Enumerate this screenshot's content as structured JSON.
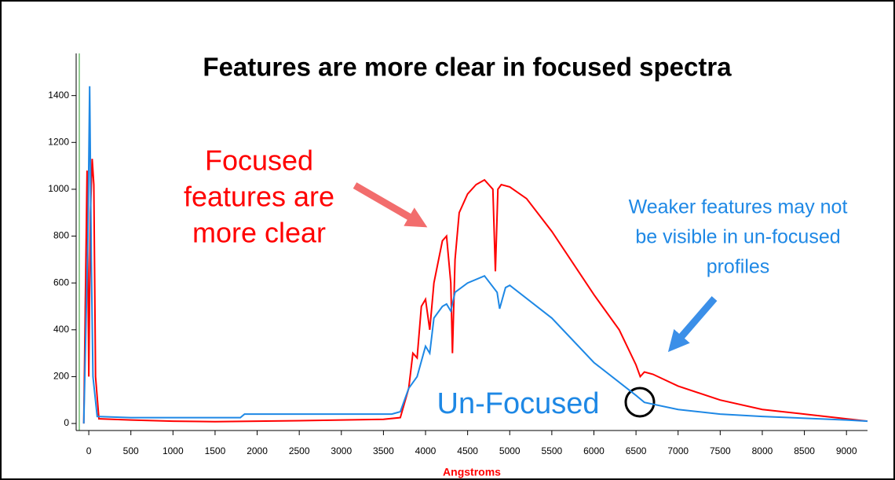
{
  "chart_data": {
    "type": "line",
    "title": "Features are more clear in focused spectra",
    "x_label": "Angstroms",
    "x_label_color": "#ff0000",
    "xlim": [
      -150,
      9250
    ],
    "ylim": [
      -30,
      1580
    ],
    "xticks": [
      0,
      500,
      1000,
      1500,
      2000,
      2500,
      3000,
      3500,
      4000,
      4500,
      5000,
      5500,
      6000,
      6500,
      7000,
      7500,
      8000,
      8500,
      9000
    ],
    "yticks": [
      0,
      200,
      400,
      600,
      800,
      1000,
      1200,
      1400
    ],
    "series": [
      {
        "color": "#ff0000",
        "x": [
          -60,
          -20,
          0,
          20,
          40,
          60,
          80,
          120,
          500,
          1000,
          1500,
          2000,
          2500,
          3000,
          3500,
          3700,
          3800,
          3850,
          3900,
          3950,
          4000,
          4050,
          4100,
          4200,
          4250,
          4300,
          4320,
          4350,
          4400,
          4500,
          4600,
          4700,
          4800,
          4830,
          4860,
          4900,
          5000,
          5200,
          5500,
          6000,
          6300,
          6500,
          6550,
          6600,
          6700,
          7000,
          7500,
          8000,
          8500,
          9000,
          9250
        ],
        "values": [
          0,
          1080,
          200,
          900,
          1130,
          1020,
          200,
          20,
          15,
          10,
          8,
          10,
          12,
          15,
          18,
          25,
          150,
          300,
          280,
          500,
          530,
          400,
          600,
          780,
          800,
          600,
          300,
          700,
          900,
          980,
          1020,
          1040,
          1000,
          650,
          1000,
          1020,
          1010,
          960,
          820,
          550,
          400,
          250,
          200,
          220,
          210,
          160,
          100,
          60,
          40,
          20,
          10
        ]
      },
      {
        "color": "#1e88e5",
        "x": [
          -60,
          -10,
          10,
          30,
          50,
          100,
          500,
          1000,
          1500,
          1800,
          1850,
          2500,
          3000,
          3600,
          3700,
          3800,
          3900,
          4000,
          4050,
          4100,
          4200,
          4250,
          4300,
          4350,
          4500,
          4700,
          4850,
          4880,
          4950,
          5000,
          5500,
          6000,
          6500,
          6600,
          7000,
          7500,
          8000,
          9000,
          9250
        ],
        "values": [
          0,
          800,
          1440,
          700,
          200,
          30,
          25,
          25,
          25,
          25,
          40,
          40,
          40,
          40,
          50,
          150,
          200,
          330,
          300,
          450,
          500,
          510,
          480,
          560,
          600,
          630,
          560,
          490,
          580,
          590,
          450,
          260,
          120,
          90,
          60,
          40,
          30,
          15,
          10
        ]
      }
    ],
    "annotations": [
      {
        "lines": [
          "Focused",
          "features are",
          "more clear"
        ],
        "color": "#ff0000"
      },
      {
        "lines": [
          "Weaker features may not",
          "be visible in un-focused",
          "profiles"
        ],
        "color": "#1e88e5"
      },
      {
        "lines": [
          "Un-Focused"
        ],
        "color": "#1e88e5"
      }
    ]
  }
}
